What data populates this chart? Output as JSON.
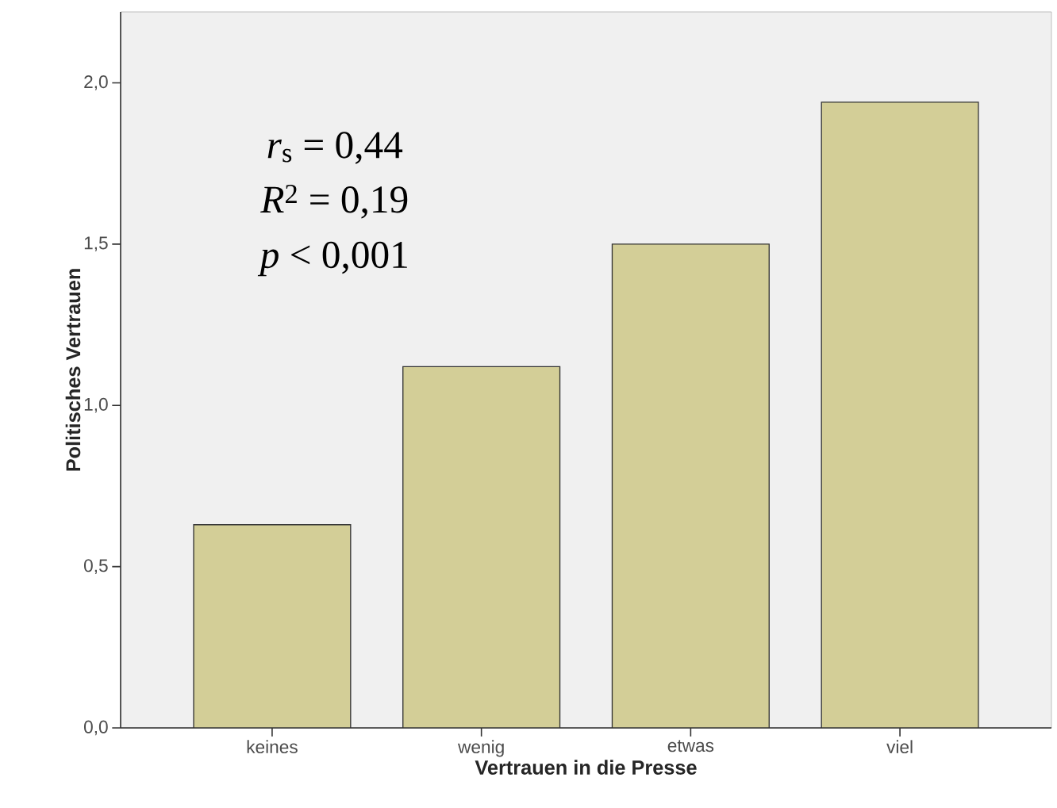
{
  "chart_data": {
    "type": "bar",
    "xlabel": "Vertrauen in die Presse",
    "ylabel": "Politisches Vertrauen",
    "categories": [
      "keines",
      "wenig",
      "etwas",
      "viel"
    ],
    "values": [
      0.63,
      1.12,
      1.5,
      1.94
    ],
    "color": "#d3ce97",
    "ylim": [
      0,
      2.22
    ],
    "yticks": [
      {
        "value": 0,
        "label": "0,0"
      },
      {
        "value": 0.5,
        "label": "0,5"
      },
      {
        "value": 1.0,
        "label": "1,0"
      },
      {
        "value": 1.5,
        "label": "1,5"
      },
      {
        "value": 2.0,
        "label": "2,0"
      }
    ],
    "grid": false,
    "annotations": [
      "*r*$_{s}$ = 0,44",
      "*R*$^{2}$ = 0,19",
      "*p* < 0,001"
    ]
  }
}
